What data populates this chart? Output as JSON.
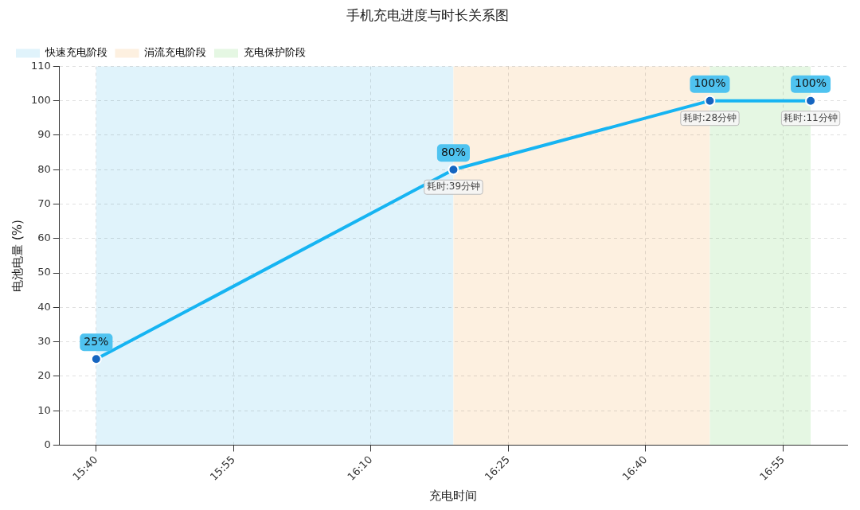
{
  "chart_data": {
    "type": "line",
    "title": "手机充电进度与时长关系图",
    "xlabel": "充电时间",
    "ylabel": "电池电量 (%)",
    "x": [
      15.6667,
      16.3167,
      16.7833,
      16.9667
    ],
    "series": [
      {
        "color": "#16b4f2",
        "values": [
          25,
          80,
          100,
          100
        ],
        "value_labels": [
          "25%",
          "80%",
          "100%",
          "100%"
        ]
      }
    ],
    "xlim": [
      15.6,
      17.0333
    ],
    "xticks": [
      {
        "value": 15.6667,
        "label": "15:40"
      },
      {
        "value": 15.9167,
        "label": "15:55"
      },
      {
        "value": 16.1667,
        "label": "16:10"
      },
      {
        "value": 16.4167,
        "label": "16:25"
      },
      {
        "value": 16.6667,
        "label": "16:40"
      },
      {
        "value": 16.9167,
        "label": "16:55"
      }
    ],
    "ylim": [
      0,
      110
    ],
    "yticks": [
      0,
      10,
      20,
      30,
      40,
      50,
      60,
      70,
      80,
      90,
      100,
      110
    ],
    "bands": [
      {
        "axis": "x",
        "from": 15.6667,
        "to": 16.3167,
        "label": "快速充电阶段",
        "color": "#e0f3fb"
      },
      {
        "axis": "x",
        "from": 16.3167,
        "to": 16.7833,
        "label": "涓流充电阶段",
        "color": "#fdf0e0"
      },
      {
        "axis": "x",
        "from": 16.7833,
        "to": 16.9667,
        "label": "充电保护阶段",
        "color": "#e5f7e3"
      }
    ],
    "annotations": [
      {
        "text": "耗时:39分钟",
        "x": 16.3167,
        "y": 80
      },
      {
        "text": "耗时:28分钟",
        "x": 16.7833,
        "y": 100
      },
      {
        "text": "耗时:11分钟",
        "x": 16.9667,
        "y": 100
      }
    ],
    "grid": true,
    "legend": "top left",
    "marker": "circle",
    "line_style": "solid"
  }
}
